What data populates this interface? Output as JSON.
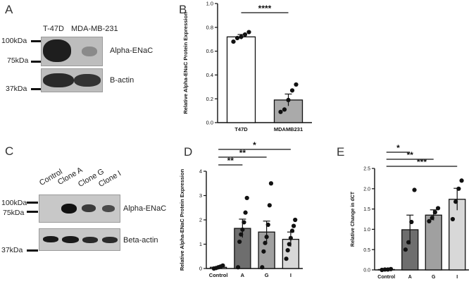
{
  "panels": {
    "A": {
      "letter": "A",
      "lanes": [
        "T-47D",
        "MDA-MB-231"
      ],
      "markers": [
        "100kDa",
        "75kDa",
        "37kDa"
      ],
      "rows": [
        "Alpha-ENaC",
        "B-actin"
      ]
    },
    "C": {
      "letter": "C",
      "lanes": [
        "Control",
        "Clone A",
        "Clone G",
        "Clone I"
      ],
      "markers": [
        "100kDa",
        "75kDa",
        "37kDa"
      ],
      "rows": [
        "Alpha-ENaC",
        "Beta-actin"
      ]
    },
    "B": {
      "letter": "B"
    },
    "D": {
      "letter": "D"
    },
    "E": {
      "letter": "E"
    }
  },
  "chart_data": [
    {
      "id": "B",
      "type": "bar",
      "ylabel": "Relative Alpha-ENaC Protein Expression",
      "categories": [
        "T47D",
        "MDAMB231"
      ],
      "values": [
        0.72,
        0.19
      ],
      "errors": [
        0.02,
        0.05
      ],
      "colors": [
        "#ffffff",
        "#aaaaaa"
      ],
      "points": [
        [
          0.68,
          0.71,
          0.72,
          0.74,
          0.76
        ],
        [
          0.09,
          0.11,
          0.19,
          0.27,
          0.32
        ]
      ],
      "ylim": [
        0,
        1.0
      ],
      "yticks": [
        "0.0",
        "0.2",
        "0.4",
        "0.6",
        "0.8",
        "1.0"
      ],
      "significance": [
        {
          "from": 0,
          "to": 1,
          "label": "****"
        }
      ]
    },
    {
      "id": "D",
      "type": "bar",
      "ylabel": "Relative Alpha-ENaC Protein Expression",
      "categories": [
        "Control",
        "A",
        "G",
        "I"
      ],
      "values": [
        0.05,
        1.65,
        1.5,
        1.2
      ],
      "errors": [
        0.02,
        0.38,
        0.45,
        0.3
      ],
      "colors": [
        "#ffffff",
        "#6e6e6e",
        "#a0a0a0",
        "#d8d8d8"
      ],
      "points": [
        [
          0.0,
          0.02,
          0.05,
          0.08,
          0.12
        ],
        [
          0.05,
          1.1,
          1.4,
          1.6,
          1.9,
          2.3,
          2.9
        ],
        [
          0.05,
          0.7,
          1.05,
          1.3,
          1.8,
          2.6,
          3.5
        ],
        [
          0.4,
          0.75,
          1.0,
          1.25,
          1.55,
          1.75,
          2.0
        ]
      ],
      "ylim": [
        0,
        4
      ],
      "yticks": [
        "0",
        "1",
        "2",
        "3",
        "4"
      ],
      "significance": [
        {
          "from": 0,
          "to": 1,
          "label": "**"
        },
        {
          "from": 0,
          "to": 2,
          "label": "**"
        },
        {
          "from": 0,
          "to": 3,
          "label": "*"
        }
      ]
    },
    {
      "id": "E",
      "type": "bar",
      "ylabel": "Relative Change in dCT",
      "categories": [
        "Control",
        "A",
        "G",
        "I"
      ],
      "values": [
        0.01,
        0.99,
        1.35,
        1.74
      ],
      "errors": [
        0.005,
        0.36,
        0.13,
        0.27
      ],
      "colors": [
        "#ffffff",
        "#6e6e6e",
        "#a0a0a0",
        "#d8d8d8"
      ],
      "points": [
        [
          0.0,
          0.01,
          0.01,
          0.02
        ],
        [
          0.5,
          0.68,
          1.18,
          1.97
        ],
        [
          1.2,
          1.28,
          1.42,
          1.52
        ],
        [
          1.25,
          1.68,
          2.0,
          2.2
        ]
      ],
      "ylim": [
        0,
        2.5
      ],
      "yticks": [
        "0.0",
        "0.5",
        "1.0",
        "1.5",
        "2.0",
        "2.5"
      ],
      "significance": [
        {
          "from": 0,
          "to": 1,
          "label": "*"
        },
        {
          "from": 0,
          "to": 2,
          "label": "**"
        },
        {
          "from": 0,
          "to": 3,
          "label": "***"
        }
      ]
    }
  ]
}
